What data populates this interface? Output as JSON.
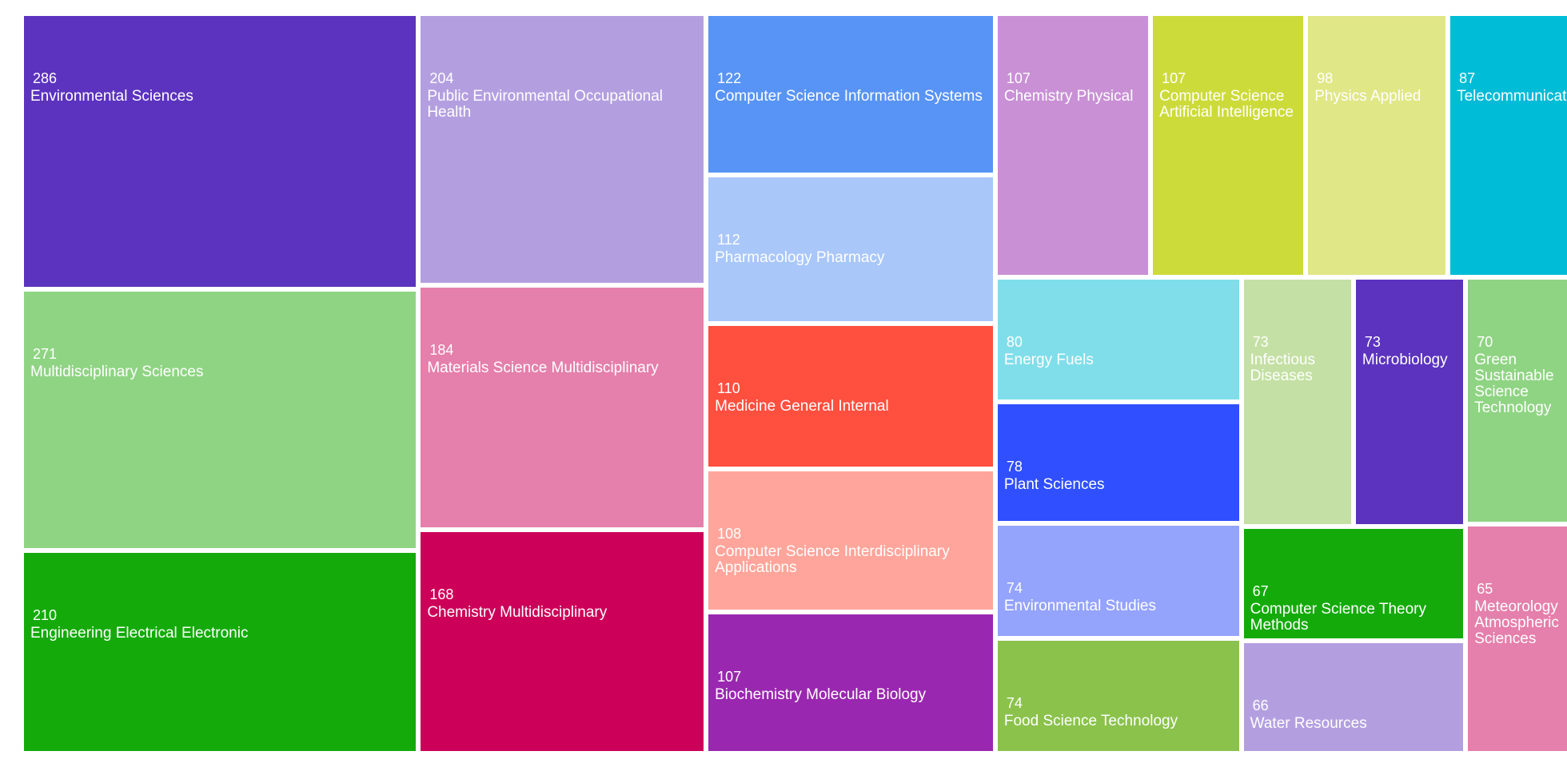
{
  "chart_data": {
    "type": "treemap",
    "categories": [
      "Environmental Sciences",
      "Multidisciplinary Sciences",
      "Engineering Electrical Electronic",
      "Public Environmental Occupational Health",
      "Materials Science Multidisciplinary",
      "Chemistry Multidisciplinary",
      "Computer Science Information Systems",
      "Pharmacology Pharmacy",
      "Medicine General Internal",
      "Computer Science Interdisciplinary Applications",
      "Biochemistry Molecular Biology",
      "Chemistry Physical",
      "Computer Science Artificial Intelligence",
      "Physics Applied",
      "Telecommunications",
      "Energy Fuels",
      "Plant Sciences",
      "Environmental Studies",
      "Food Science Technology",
      "Infectious Diseases",
      "Microbiology",
      "Green Sustainable Science Technology",
      "Computer Science Theory Methods",
      "Water Resources",
      "Meteorology Atmospheric Sciences"
    ],
    "values": [
      286,
      271,
      210,
      204,
      184,
      168,
      122,
      112,
      110,
      108,
      107,
      107,
      107,
      98,
      87,
      80,
      78,
      74,
      74,
      73,
      73,
      70,
      67,
      66,
      65
    ],
    "colors": [
      "#5c33bf",
      "#8fd483",
      "#14ab0a",
      "#b39fe0",
      "#e57fab",
      "#cc0058",
      "#5894f5",
      "#a9c7f9",
      "#ff4f3f",
      "#ffa59b",
      "#9a27b0",
      "#c990d6",
      "#cddb3a",
      "#e0e786",
      "#00bcd6",
      "#80deea",
      "#304ffe",
      "#94a3fc",
      "#8bc24c",
      "#c4e0a4",
      "#5c33bf",
      "#8fd483",
      "#14ab0a",
      "#b39fe0",
      "#e57fab"
    ]
  }
}
